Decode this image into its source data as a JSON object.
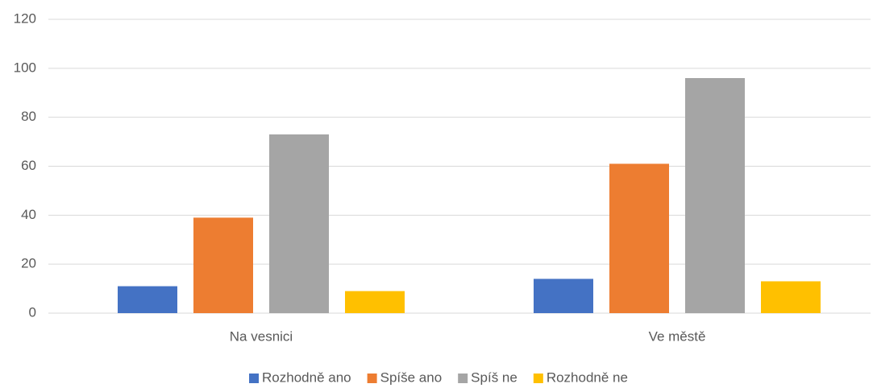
{
  "chart_data": {
    "type": "bar",
    "categories": [
      "Na vesnici",
      "Ve městě"
    ],
    "series": [
      {
        "name": "Rozhodně ano",
        "color": "#4472c4",
        "values": [
          11,
          14
        ]
      },
      {
        "name": "Spíše ano",
        "color": "#ed7d31",
        "values": [
          39,
          61
        ]
      },
      {
        "name": "Spíš ne",
        "color": "#a5a5a5",
        "values": [
          73,
          96
        ]
      },
      {
        "name": "Rozhodně ne",
        "color": "#ffc000",
        "values": [
          9,
          13
        ]
      }
    ],
    "ylim": [
      0,
      120
    ],
    "yticks": [
      0,
      20,
      40,
      60,
      80,
      100,
      120
    ],
    "grid": true,
    "legend": "bottom"
  }
}
